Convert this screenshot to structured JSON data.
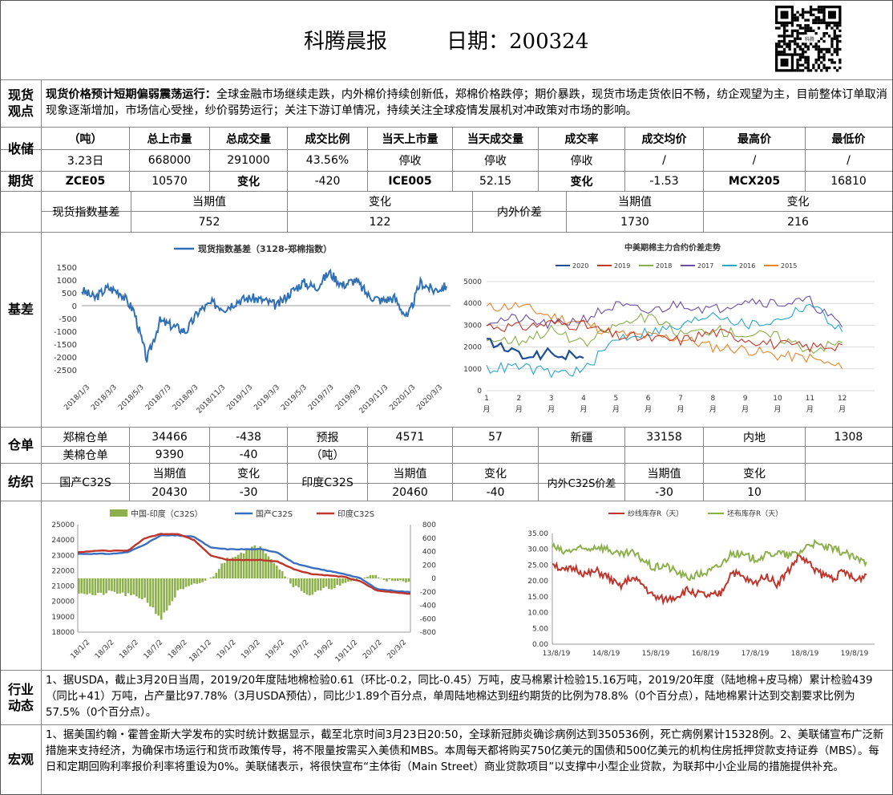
{
  "header": {
    "title": "科腾晨报",
    "date": "日期：200324"
  },
  "sections": {
    "spot": "现货\n观点",
    "storage": "收储",
    "futures": "期货",
    "basis": "基差",
    "warehouse": "仓单",
    "yarn": "纺织",
    "industry": "行业\n动态",
    "macro": "宏观"
  },
  "spot_view": {
    "lead": "现货价格预计短期偏弱震荡运行：",
    "text": "全球金融市场继续走跌，内外棉价持续创新低，郑棉价格跌停；期价暴跌，现货市场走货依旧不畅，纺企观望为主，目前整体订单取消现象逐渐增加，市场信心受挫，纱价弱势运行；关注下游订单情况，持续关注全球疫情发展机对冲政策对市场的影响。"
  },
  "storage": {
    "headers": [
      "（吨）",
      "总上市量",
      "总成交量",
      "成交比例",
      "当天上市量",
      "当天成交量",
      "成交率",
      "成交均价",
      "最高价",
      "最低价"
    ],
    "row": [
      "3.23日",
      "668000",
      "291000",
      "43.56%",
      "停收",
      "停收",
      "停收",
      "/",
      "/",
      "/"
    ]
  },
  "futures": {
    "row": [
      "ZCE05",
      "10570",
      "变化",
      "-420",
      "ICE005",
      "52.15",
      "变化",
      "-1.53",
      "MCX205",
      "16810"
    ]
  },
  "basis_table": {
    "label1": "现货指数基差",
    "label2": "内外价差",
    "h_cur": "当期值",
    "h_chg": "变化",
    "v1": "752",
    "c1": "122",
    "v2": "1730",
    "c2": "216"
  },
  "warehouse": {
    "r1": [
      "郑棉仓单",
      "34466",
      "-438",
      "预报",
      "4571",
      "57",
      "新疆",
      "33158",
      "内地",
      "1308"
    ],
    "r2": [
      "美棉仓单",
      "9390",
      "-40",
      "（吨）"
    ]
  },
  "yarn": {
    "l1": "国产C32S",
    "h1": "当期值",
    "hc1": "变化",
    "v1": "20430",
    "c1": "-30",
    "l2": "印度C32S",
    "h2": "当期值",
    "hc2": "变化",
    "v2": "20460",
    "c2": "-40",
    "l3": "内外C32S价差",
    "h3": "当期值",
    "hc3": "变化",
    "v3": "-30",
    "c3": "10"
  },
  "industry_text": "1、据USDA，截止3月20日当周，2019/20年度陆地棉检验0.61（环比-0.2，同比-0.45）万吨，皮马棉累计检验15.16万吨，2019/20年度（陆地棉+皮马棉）累计检验439（同比+41）万吨，占产量比97.78%（3月USDA预估），同比少1.89个百分点，单周陆地棉达到纽约期货的比例为78.8%（0个百分点），陆地棉累计达到交割要求比例为57.5%（0个百分点）。",
  "macro_text": "1、据美国约翰・霍普金斯大学发布的实时统计数据显示，截至北京时间3月23日20:50，全球新冠肺炎确诊病例达到350536例，死亡病例累计15328例。2、美联储宣布广泛新措施来支持经济，为确保市场运行和货币政策传导，将不限量按需买入美债和MBS。本周每天都将购买750亿美元的国债和500亿美元的机构住房抵押贷款支持证券（MBS）。每日和定期回购利率报价利率将重设为0%。美联储表示，将很快宣布“主体街（Main Street）商业贷款项目”以支撑中小型企业贷款，为联邦中小企业局的措施提供补充。",
  "qr": {
    "caption": "科腾"
  },
  "chart_data": [
    {
      "type": "line",
      "title": "",
      "series": [
        {
          "name": "现货指数基差（3128-郑棉指数）",
          "color": "#2e6fb5",
          "x": [
            "2018/1/3",
            "2018/2/3",
            "2018/3/3",
            "2018/4/3",
            "2018/5/3",
            "2018/5/20",
            "2018/6/3",
            "2018/7/3",
            "2018/8/3",
            "2018/9/3",
            "2018/10/3",
            "2018/11/3",
            "2018/12/3",
            "2019/1/3",
            "2019/2/3",
            "2019/3/3",
            "2019/4/3",
            "2019/5/3",
            "2019/6/3",
            "2019/7/3",
            "2019/8/3",
            "2019/9/3",
            "2019/10/3",
            "2019/11/3",
            "2019/12/3",
            "2020/1/3",
            "2020/2/3",
            "2020/3/3",
            "2020/3/23"
          ],
          "values": [
            600,
            300,
            700,
            500,
            -200,
            -2100,
            -600,
            -800,
            -1000,
            -200,
            100,
            -100,
            200,
            300,
            200,
            0,
            500,
            900,
            700,
            1300,
            800,
            1000,
            400,
            200,
            300,
            -500,
            900,
            600,
            752
          ]
        }
      ],
      "ylim": [
        -2500,
        1500
      ],
      "yticks": [
        "1500",
        "1000",
        "500",
        "0",
        "-500",
        "-1000",
        "-1500",
        "-2000",
        "-2500"
      ],
      "xticks": [
        "2018/1/3",
        "2018/3/3",
        "2018/5/3",
        "2018/7/3",
        "2018/9/3",
        "2018/11/3",
        "2019/1/3",
        "2019/3/3",
        "2019/5/3",
        "2019/7/3",
        "2019/9/3",
        "2019/11/3",
        "2020/1/3",
        "2020/3/3"
      ]
    },
    {
      "type": "line",
      "title": "中美期棉主力合约价差走势",
      "ylim": [
        0,
        5000
      ],
      "yticks": [
        "5000",
        "4000",
        "3000",
        "2000",
        "1000",
        "0"
      ],
      "xticks": [
        "1月",
        "2月",
        "3月",
        "4月",
        "5月",
        "6月",
        "7月",
        "8月",
        "9月",
        "10月",
        "11月",
        "12月"
      ],
      "series": [
        {
          "name": "2020",
          "color": "#1f4e96",
          "values": [
            2300,
            1600,
            1700,
            1500
          ]
        },
        {
          "name": "2019",
          "color": "#c0392b",
          "values": [
            3000,
            2900,
            3100,
            3000,
            2500,
            2400,
            2300,
            2700,
            2400,
            2100,
            2000,
            2100
          ]
        },
        {
          "name": "2018",
          "color": "#8ab04a",
          "values": [
            2400,
            2300,
            2800,
            2100,
            3000,
            3400,
            2600,
            2800,
            2600,
            2500,
            1900,
            2200
          ]
        },
        {
          "name": "2017",
          "color": "#6b4fa0",
          "values": [
            3200,
            3300,
            3000,
            3300,
            3900,
            3600,
            4000,
            3700,
            4200,
            4000,
            4100,
            2900
          ]
        },
        {
          "name": "2016",
          "color": "#2aa8c9",
          "values": [
            1000,
            1100,
            800,
            900,
            2400,
            2700,
            2900,
            3600,
            3000,
            3200,
            4000,
            2700
          ]
        },
        {
          "name": "2015",
          "color": "#e8862a",
          "values": [
            3800,
            3900,
            3400,
            3100,
            2600,
            2500,
            2400,
            2000,
            1900,
            1600,
            1500,
            1000
          ]
        }
      ]
    },
    {
      "type": "bar",
      "title": "",
      "ylim": [
        18000,
        25000
      ],
      "y2lim": [
        -800,
        800
      ],
      "yticks": [
        "25000",
        "24000",
        "23000",
        "22000",
        "21000",
        "20000",
        "19000",
        "18000"
      ],
      "y2ticks": [
        "800",
        "600",
        "400",
        "200",
        "0",
        "-200",
        "-400",
        "-600",
        "-800"
      ],
      "xticks": [
        "18/1/2",
        "18/3/2",
        "18/5/2",
        "18/7/2",
        "18/9/2",
        "18/11/2",
        "19/1/2",
        "19/3/2",
        "19/5/2",
        "19/7/2",
        "19/9/2",
        "19/11/2",
        "20/1/2",
        "20/3/2"
      ],
      "series": [
        {
          "name": "中国-印度（C32S）",
          "color": "#8db04c",
          "type": "bar",
          "values": [
            -200,
            -250,
            -200,
            -250,
            -300,
            -600,
            -200,
            -100,
            0,
            300,
            400,
            500,
            200,
            -100,
            -250,
            -150,
            -100,
            0,
            50,
            -50,
            -50
          ]
        },
        {
          "name": "国产C32S",
          "color": "#3a6fbf",
          "values": [
            23100,
            23100,
            23100,
            23200,
            23700,
            24300,
            24300,
            24200,
            23500,
            23400,
            23400,
            23400,
            23200,
            22500,
            22200,
            22000,
            21800,
            21500,
            20800,
            20700,
            20600
          ]
        },
        {
          "name": "印度C32S",
          "color": "#c0352b",
          "values": [
            23200,
            23300,
            23300,
            23300,
            24100,
            24400,
            24400,
            24000,
            23000,
            22700,
            22700,
            22700,
            22600,
            22100,
            21800,
            21700,
            21600,
            21300,
            20700,
            20600,
            20500
          ]
        }
      ]
    },
    {
      "type": "line",
      "title": "",
      "ylim": [
        0,
        35
      ],
      "yticks": [
        "35.00",
        "30.00",
        "25.00",
        "20.00",
        "15.00",
        "10.00",
        "5.00",
        "0.00"
      ],
      "xticks": [
        "13/8/19",
        "14/8/19",
        "15/8/19",
        "16/8/19",
        "17/8/19",
        "18/8/19",
        "19/8/19"
      ],
      "series": [
        {
          "name": "纱线库存R（天）",
          "color": "#c0352b",
          "values": [
            26,
            23,
            24,
            22,
            23,
            21,
            18,
            21,
            19,
            15,
            14,
            15,
            17,
            16,
            15,
            16,
            23,
            21,
            19,
            22,
            19,
            23,
            28,
            25,
            22,
            21,
            23,
            20,
            22
          ]
        },
        {
          "name": "坯布库存R（天）",
          "color": "#8db04c",
          "values": [
            31,
            29,
            30,
            30,
            31,
            30,
            28,
            29,
            27,
            24,
            25,
            23,
            21,
            22,
            23,
            25,
            29,
            28,
            27,
            28,
            29,
            28,
            29,
            32,
            31,
            30,
            29,
            27,
            26
          ]
        }
      ]
    }
  ]
}
